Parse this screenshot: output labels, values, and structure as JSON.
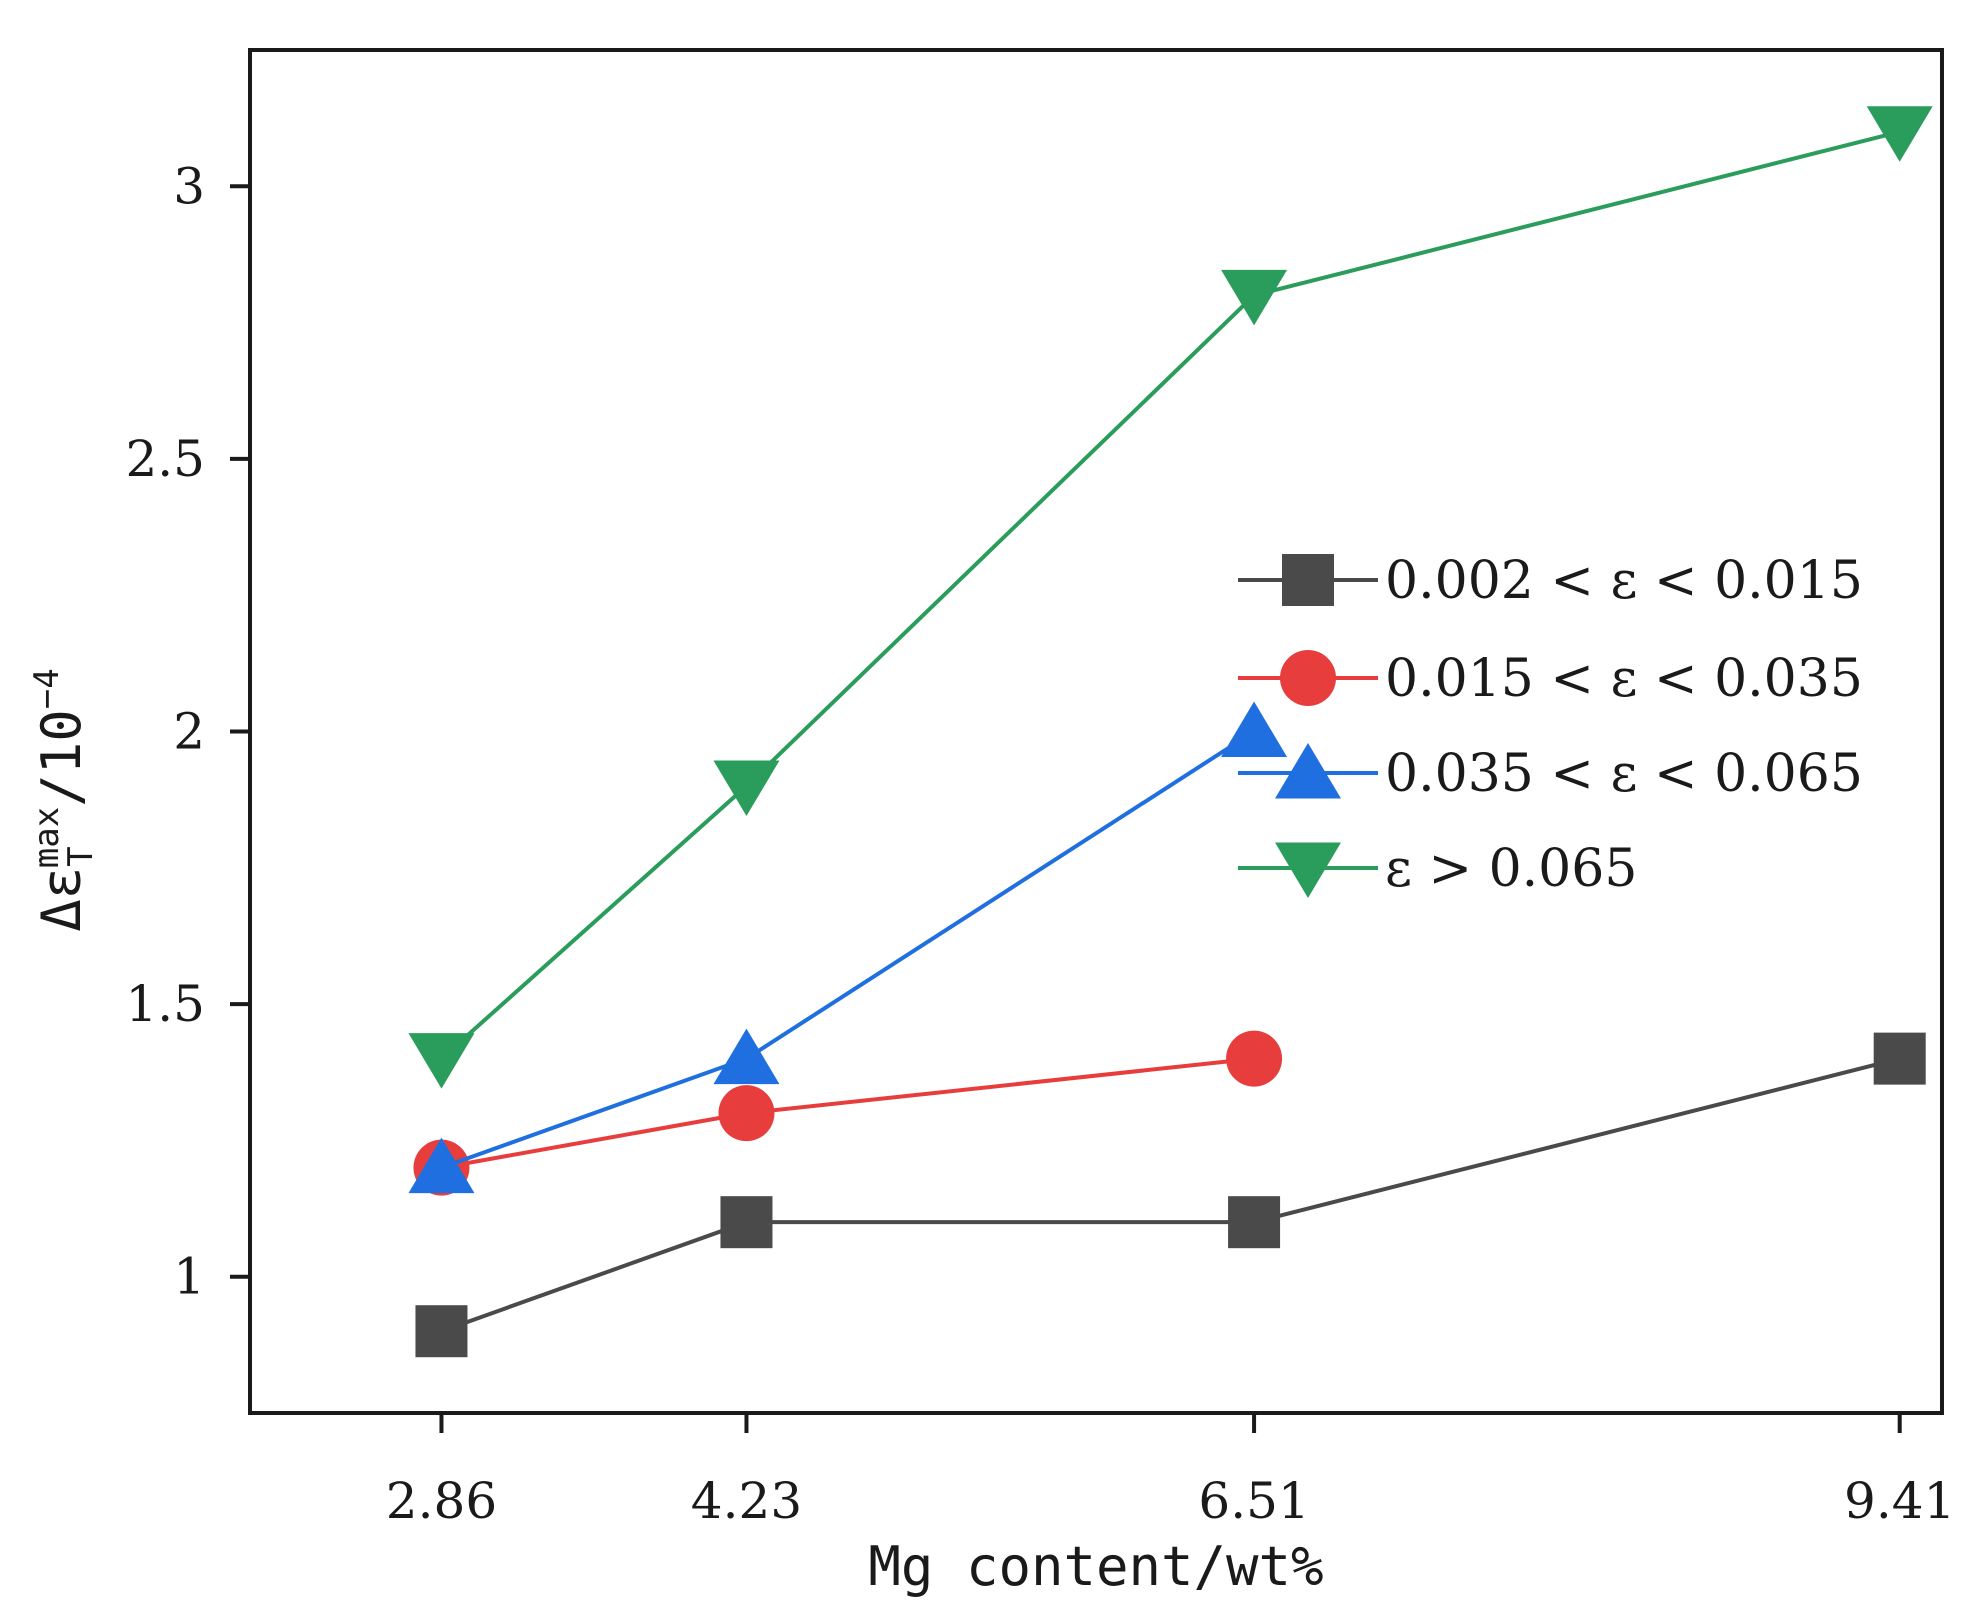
{
  "chart_data": {
    "type": "line",
    "title": "",
    "xlabel": "Mg content/wt%",
    "ylabel": {
      "base": "Δε",
      "subscript": "T",
      "superscript": "max",
      "unit": "/10",
      "unit_exponent": "−4"
    },
    "x": [
      2.86,
      4.23,
      6.51,
      9.41
    ],
    "x_tick_labels": [
      "2.86",
      "4.23",
      "6.51",
      "9.41"
    ],
    "xlim": [
      2.0,
      9.6
    ],
    "ylim": [
      0.75,
      3.25
    ],
    "y_ticks": [
      1,
      1.5,
      2,
      2.5,
      3
    ],
    "y_tick_labels": [
      "1",
      "1.5",
      "2",
      "2.5",
      "3"
    ],
    "grid": false,
    "legend_position": "right",
    "series": [
      {
        "name": "0.002 < ε < 0.015",
        "color": "#4a4a4a",
        "marker": "square",
        "x": [
          2.86,
          4.23,
          6.51,
          9.41
        ],
        "values": [
          0.9,
          1.1,
          1.1,
          1.4
        ]
      },
      {
        "name": "0.015 < ε < 0.035",
        "color": "#e83d3d",
        "marker": "circle",
        "x": [
          2.86,
          4.23,
          6.51
        ],
        "values": [
          1.2,
          1.3,
          1.4
        ]
      },
      {
        "name": "0.035 < ε < 0.065",
        "color": "#1f6fe0",
        "marker": "triangle-up",
        "x": [
          2.86,
          4.23,
          6.51
        ],
        "values": [
          1.2,
          1.4,
          2.0
        ]
      },
      {
        "name": "ε > 0.065",
        "color": "#2a9d5c",
        "marker": "triangle-down",
        "x": [
          2.86,
          4.23,
          6.51,
          9.41
        ],
        "values": [
          1.4,
          1.9,
          2.8,
          3.1
        ]
      }
    ]
  }
}
